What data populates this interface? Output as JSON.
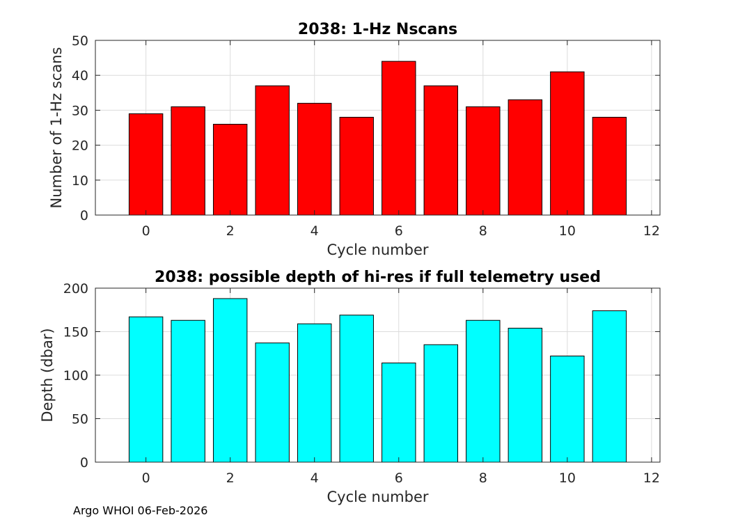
{
  "chart_data": [
    {
      "type": "bar",
      "title": "2038: 1-Hz Nscans",
      "xlabel": "Cycle number",
      "ylabel": "Number of 1-Hz scans",
      "x": [
        0,
        1,
        2,
        3,
        4,
        5,
        6,
        7,
        8,
        9,
        10,
        11
      ],
      "values": [
        29,
        31,
        26,
        37,
        32,
        28,
        44,
        37,
        31,
        33,
        41,
        28
      ],
      "xlim": [
        -1.2,
        12.2
      ],
      "ylim": [
        0,
        50
      ],
      "xticks": [
        0,
        2,
        4,
        6,
        8,
        10,
        12
      ],
      "yticks": [
        0,
        10,
        20,
        30,
        40,
        50
      ],
      "color": "#ff0000",
      "grid": true
    },
    {
      "type": "bar",
      "title": "2038: possible depth of hi-res if full telemetry used",
      "xlabel": "Cycle number",
      "ylabel": "Depth (dbar)",
      "x": [
        0,
        1,
        2,
        3,
        4,
        5,
        6,
        7,
        8,
        9,
        10,
        11
      ],
      "values": [
        167,
        163,
        188,
        137,
        159,
        169,
        114,
        135,
        163,
        154,
        122,
        174
      ],
      "xlim": [
        -1.2,
        12.2
      ],
      "ylim": [
        0,
        200
      ],
      "xticks": [
        0,
        2,
        4,
        6,
        8,
        10,
        12
      ],
      "yticks": [
        0,
        50,
        100,
        150,
        200
      ],
      "color": "#00ffff",
      "grid": true
    }
  ],
  "footer": "Argo WHOI 06-Feb-2026"
}
